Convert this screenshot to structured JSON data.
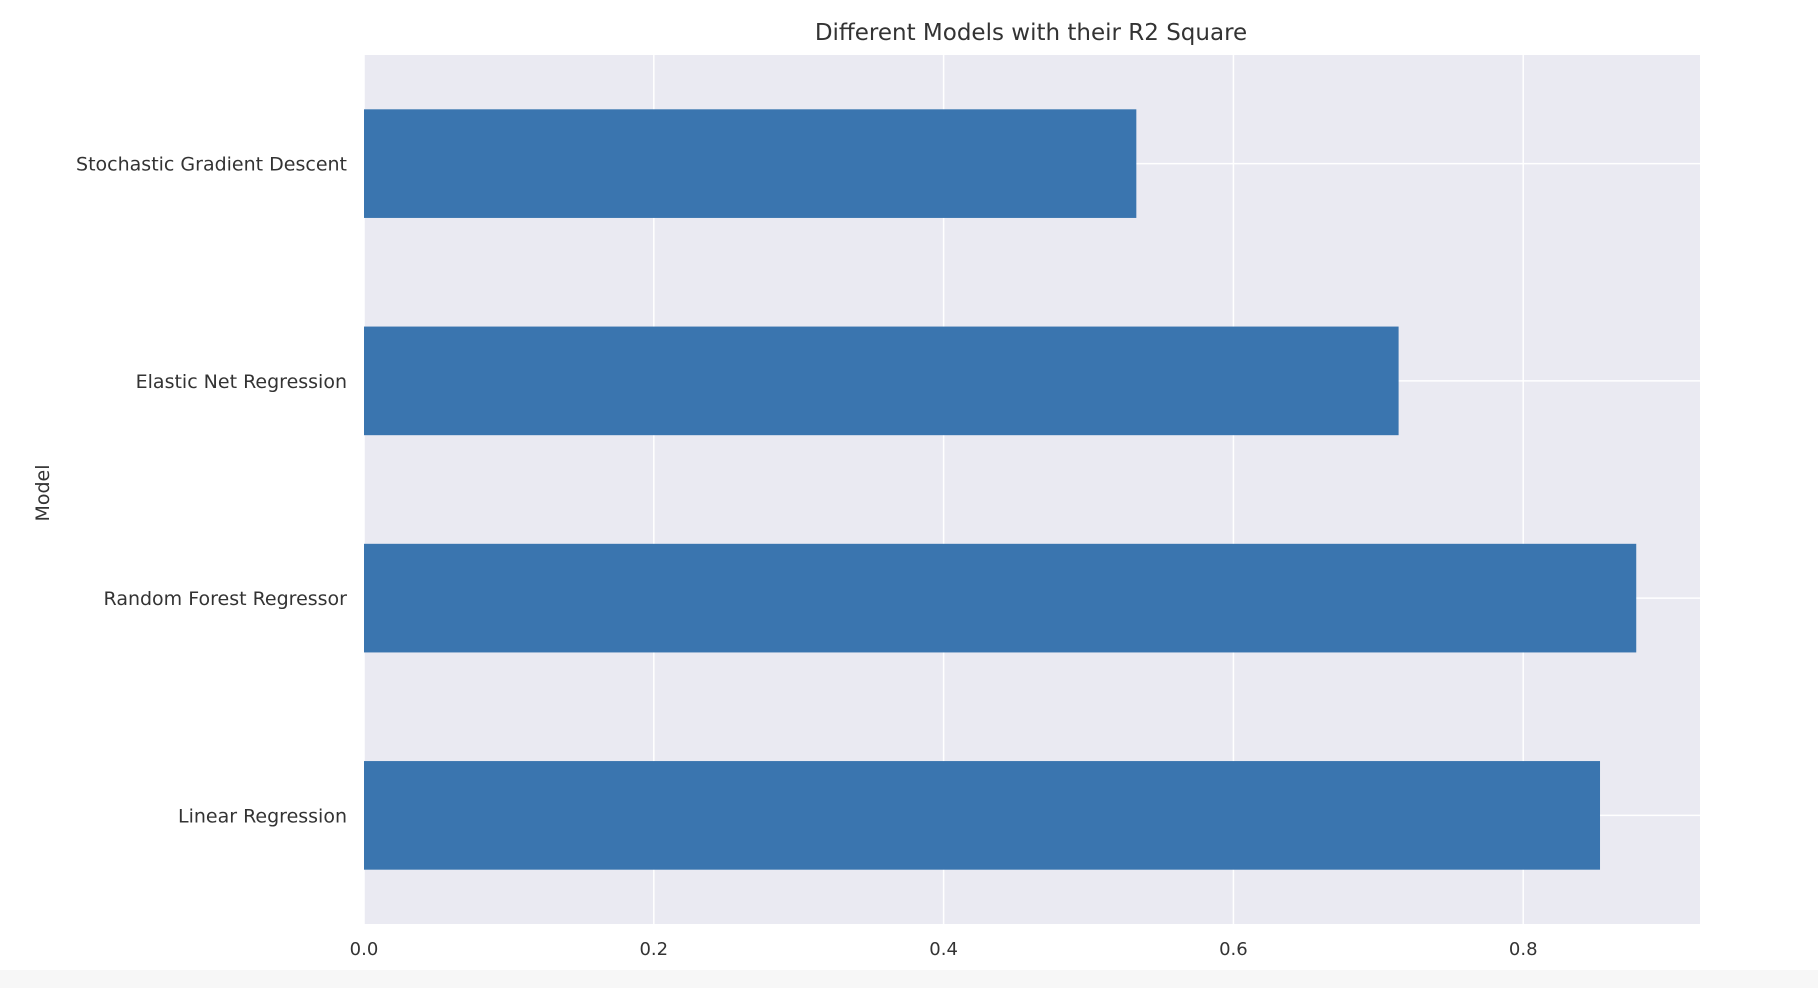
{
  "chart_data": {
    "type": "bar",
    "orientation": "horizontal",
    "title": "Different Models with their R2 Square",
    "xlabel": "",
    "ylabel": "Model",
    "categories": [
      "Linear Regression",
      "Random Forest Regressor",
      "Elastic Net Regression",
      "Stochastic Gradient Descent"
    ],
    "values": [
      0.853,
      0.878,
      0.714,
      0.533
    ],
    "xlim": [
      0.0,
      0.922
    ],
    "xticks": [
      0.0,
      0.2,
      0.4,
      0.6,
      0.8
    ],
    "xtick_labels": [
      "0.0",
      "0.2",
      "0.4",
      "0.6",
      "0.8"
    ],
    "grid": true,
    "legend": "none",
    "colors": {
      "bar": "#3a75af",
      "plot_background": "#eaeaf2",
      "grid": "#ffffff",
      "text": "#333333"
    }
  }
}
